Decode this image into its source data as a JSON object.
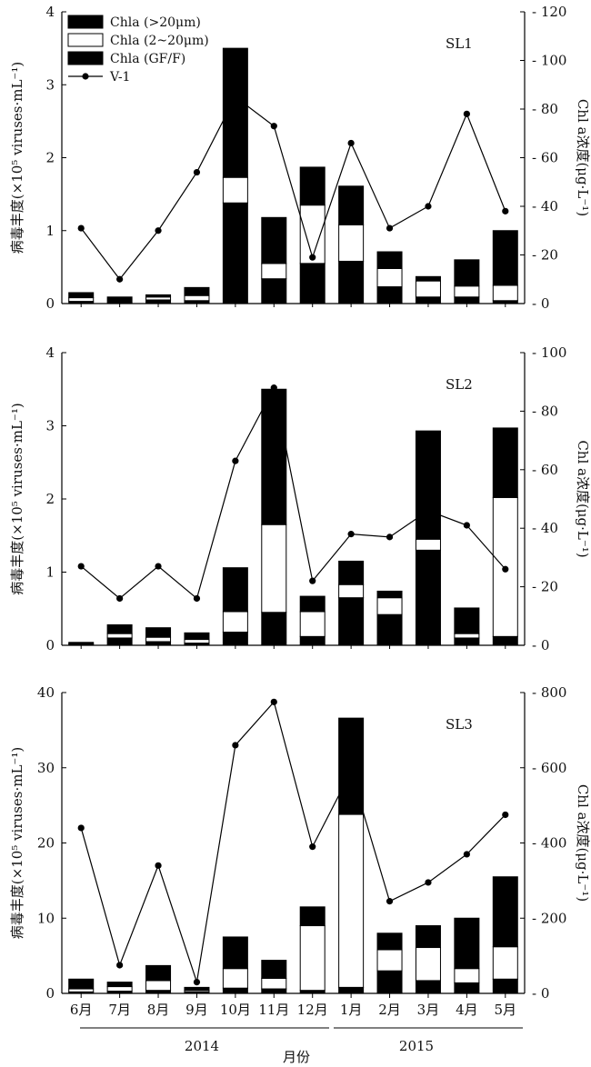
{
  "chart_data": [
    {
      "type": "bar",
      "panel_label": "SL1",
      "categories": [
        "6月",
        "7月",
        "8月",
        "9月",
        "10月",
        "11月",
        "12月",
        "1月",
        "2月",
        "3月",
        "4月",
        "5月"
      ],
      "ylabel_left": "病毒丰度(×10⁵ viruses·mL⁻¹)",
      "ylabel_right": "Chl a浓度(μg·L⁻¹)",
      "ylim_left": [
        0,
        4
      ],
      "yticks_left": [
        "0",
        "1",
        "2",
        "3",
        "4"
      ],
      "ylim_right": [
        0,
        120
      ],
      "yticks_right": [
        "0",
        "20",
        "40",
        "60",
        "80",
        "100",
        "120"
      ],
      "stack_series": [
        {
          "name": "Chla (GF/F)",
          "values": [
            0.03,
            0.09,
            0.05,
            0.04,
            1.38,
            0.34,
            0.55,
            0.58,
            0.23,
            0.09,
            0.09,
            0.04
          ]
        },
        {
          "name": "Chla (2~20μm)",
          "values": [
            0.05,
            0.0,
            0.04,
            0.07,
            0.35,
            0.21,
            0.8,
            0.5,
            0.25,
            0.22,
            0.15,
            0.21
          ]
        },
        {
          "name": "Chla (>20μm)",
          "values": [
            0.07,
            0.0,
            0.03,
            0.11,
            1.77,
            0.63,
            0.52,
            0.53,
            0.23,
            0.06,
            0.36,
            0.75
          ]
        }
      ],
      "line_series": {
        "name": "V-1",
        "values": [
          31,
          10,
          30,
          54,
          85,
          73,
          19,
          66,
          31,
          40,
          78,
          38
        ]
      }
    },
    {
      "type": "bar",
      "panel_label": "SL2",
      "categories": [
        "6月",
        "7月",
        "8月",
        "9月",
        "10月",
        "11月",
        "12月",
        "1月",
        "2月",
        "3月",
        "4月",
        "5月"
      ],
      "ylabel_left": "病毒丰度(×10⁵ viruses·mL⁻¹)",
      "ylabel_right": "Chl a浓度(μg·L⁻¹)",
      "ylim_left": [
        0,
        4
      ],
      "yticks_left": [
        "0",
        "1",
        "2",
        "3",
        "4"
      ],
      "ylim_right": [
        0,
        100
      ],
      "yticks_right": [
        "0",
        "20",
        "40",
        "60",
        "80",
        "100"
      ],
      "stack_series": [
        {
          "name": "Chla (GF/F)",
          "values": [
            0.02,
            0.1,
            0.05,
            0.03,
            0.18,
            0.45,
            0.12,
            0.65,
            0.42,
            1.3,
            0.1,
            0.12
          ]
        },
        {
          "name": "Chla (2~20μm)",
          "values": [
            0.0,
            0.06,
            0.06,
            0.05,
            0.28,
            1.2,
            0.34,
            0.18,
            0.23,
            0.15,
            0.06,
            1.9
          ]
        },
        {
          "name": "Chla (>20μm)",
          "values": [
            0.02,
            0.12,
            0.13,
            0.09,
            0.6,
            1.85,
            0.21,
            0.32,
            0.09,
            1.48,
            0.35,
            0.95
          ]
        }
      ],
      "line_series": {
        "name": "V-1",
        "values": [
          27,
          16,
          27,
          16,
          63,
          88,
          22,
          38,
          37,
          46,
          41,
          26
        ]
      }
    },
    {
      "type": "bar",
      "panel_label": "SL3",
      "categories": [
        "6月",
        "7月",
        "8月",
        "9月",
        "10月",
        "11月",
        "12月",
        "1月",
        "2月",
        "3月",
        "4月",
        "5月"
      ],
      "ylabel_left": "病毒丰度(×10⁵ viruses·mL⁻¹)",
      "ylabel_right": "Chl a浓度(μg·L⁻¹)",
      "ylim_left": [
        0,
        40
      ],
      "yticks_left": [
        "0",
        "10",
        "20",
        "30",
        "40"
      ],
      "ylim_right": [
        0,
        800
      ],
      "yticks_right": [
        "0",
        "200",
        "400",
        "600",
        "800"
      ],
      "stack_series": [
        {
          "name": "Chla (GF/F)",
          "values": [
            0.2,
            0.3,
            0.4,
            0.2,
            0.7,
            0.6,
            0.4,
            0.8,
            3.0,
            1.7,
            1.4,
            1.9
          ]
        },
        {
          "name": "Chla (2~20μm)",
          "values": [
            0.4,
            0.6,
            1.3,
            0.2,
            2.6,
            1.4,
            8.6,
            23.0,
            2.8,
            4.4,
            1.9,
            4.3
          ]
        },
        {
          "name": "Chla (>20μm)",
          "values": [
            1.3,
            0.6,
            2.0,
            0.4,
            4.2,
            2.4,
            2.5,
            12.8,
            2.2,
            2.9,
            6.7,
            9.3
          ]
        }
      ],
      "line_series": {
        "name": "V-1",
        "values": [
          440,
          75,
          340,
          30,
          660,
          775,
          390,
          590,
          245,
          295,
          370,
          475
        ]
      },
      "xlabel": "月份",
      "year_groups": [
        "2014",
        "2015"
      ]
    }
  ],
  "legend": {
    "items": [
      {
        "label": "Chla (>20μm)",
        "fill": "#000000"
      },
      {
        "label": "Chla (2~20μm)",
        "fill": "#ffffff"
      },
      {
        "label": "Chla (GF/F)",
        "fill": "#000000"
      },
      {
        "label": "V-1",
        "marker": "line-dot"
      }
    ]
  },
  "colors": {
    "bar_dark": "#000000",
    "bar_light": "#ffffff",
    "line": "#000000"
  }
}
